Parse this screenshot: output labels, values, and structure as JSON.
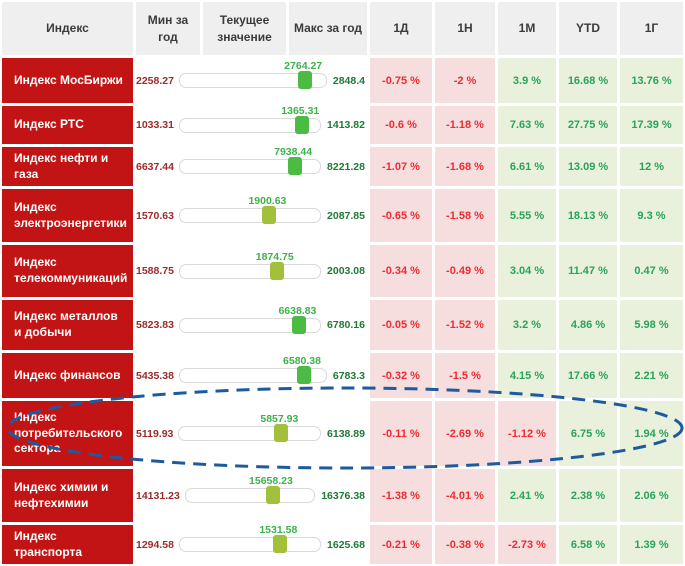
{
  "colors": {
    "index_bg": "#c21414",
    "index_text": "#ffffff",
    "header_bg": "#efefef",
    "header_text": "#3b3b3b",
    "neg_bg": "#f7dede",
    "neg_text": "#ee2b31",
    "pos_bg": "#e9f0db",
    "pos_text": "#29a35a",
    "min_text": "#9c2b2b",
    "max_text": "#1e7a34",
    "current_text": "#3cb24a",
    "thumb_green": "#4cbb44",
    "thumb_olive": "#a2c03c",
    "track_border": "#d9d9d9"
  },
  "annotation": {
    "shape": "dashed-ellipse",
    "color": "#1d5a9e",
    "highlighted_row": "Индекс потребительского сектора"
  },
  "chart_data": {
    "type": "table",
    "columns": [
      "Индекс",
      "Мин за год",
      "Текущее значение",
      "Макс за год",
      "1Д",
      "1Н",
      "1М",
      "YTD",
      "1Г"
    ],
    "rows": [
      {
        "index": "Индекс МосБиржи",
        "min": "2258.27",
        "current": "2764.27",
        "max": "2848.4",
        "d1": "-0.75 %",
        "w1": "-2 %",
        "m1": "3.9 %",
        "ytd": "16.68 %",
        "y1": "13.76 %",
        "thumb_color": "#4cbb44"
      },
      {
        "index": "Индекс РТС",
        "min": "1033.31",
        "current": "1365.31",
        "max": "1413.82",
        "d1": "-0.6 %",
        "w1": "-1.18 %",
        "m1": "7.63 %",
        "ytd": "27.75 %",
        "y1": "17.39 %",
        "thumb_color": "#4cbb44"
      },
      {
        "index": "Индекс нефти и газа",
        "min": "6637.44",
        "current": "7938.44",
        "max": "8221.28",
        "d1": "-1.07 %",
        "w1": "-1.68 %",
        "m1": "6.61 %",
        "ytd": "13.09 %",
        "y1": "12 %",
        "thumb_color": "#4cbb44"
      },
      {
        "index": "Индекс электроэнергетики",
        "min": "1570.63",
        "current": "1900.63",
        "max": "2087.85",
        "d1": "-0.65 %",
        "w1": "-1.58 %",
        "m1": "5.55 %",
        "ytd": "18.13 %",
        "y1": "9.3 %",
        "thumb_color": "#a2c03c"
      },
      {
        "index": "Индекс телекоммуникаций",
        "min": "1588.75",
        "current": "1874.75",
        "max": "2003.08",
        "d1": "-0.34 %",
        "w1": "-0.49 %",
        "m1": "3.04 %",
        "ytd": "11.47 %",
        "y1": "0.47 %",
        "thumb_color": "#a2c03c"
      },
      {
        "index": "Индекс металлов и добычи",
        "min": "5823.83",
        "current": "6638.83",
        "max": "6780.16",
        "d1": "-0.05 %",
        "w1": "-1.52 %",
        "m1": "3.2 %",
        "ytd": "4.86 %",
        "y1": "5.98 %",
        "thumb_color": "#4cbb44"
      },
      {
        "index": "Индекс финансов",
        "min": "5435.38",
        "current": "6580.38",
        "max": "6783.3",
        "d1": "-0.32 %",
        "w1": "-1.5 %",
        "m1": "4.15 %",
        "ytd": "17.66 %",
        "y1": "2.21 %",
        "thumb_color": "#4cbb44"
      },
      {
        "index": "Индекс потребительского сектора",
        "min": "5119.93",
        "current": "5857.93",
        "max": "6138.89",
        "d1": "-0.11 %",
        "w1": "-2.69 %",
        "m1": "-1.12 %",
        "ytd": "6.75 %",
        "y1": "1.94 %",
        "thumb_color": "#a2c03c"
      },
      {
        "index": "Индекс химии и нефтехимии",
        "min": "14131.23",
        "current": "15658.23",
        "max": "16376.38",
        "d1": "-1.38 %",
        "w1": "-4.01 %",
        "m1": "2.41 %",
        "ytd": "2.38 %",
        "y1": "2.06 %",
        "thumb_color": "#a2c03c"
      },
      {
        "index": "Индекс транспорта",
        "min": "1294.58",
        "current": "1531.58",
        "max": "1625.68",
        "d1": "-0.21 %",
        "w1": "-0.38 %",
        "m1": "-2.73 %",
        "ytd": "6.58 %",
        "y1": "1.39 %",
        "thumb_color": "#a2c03c"
      }
    ]
  }
}
